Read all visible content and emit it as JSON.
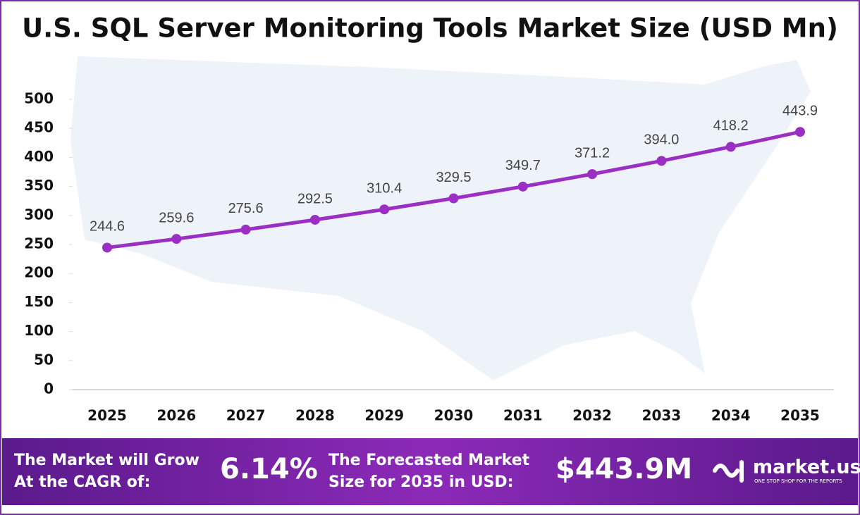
{
  "chart_data": {
    "type": "line",
    "title": "U.S. SQL Server Monitoring Tools Market Size (USD Mn)",
    "categories": [
      "2025",
      "2026",
      "2027",
      "2028",
      "2029",
      "2030",
      "2031",
      "2032",
      "2033",
      "2034",
      "2035"
    ],
    "values": [
      244.6,
      259.6,
      275.6,
      292.5,
      310.4,
      329.5,
      349.7,
      371.2,
      394.0,
      418.2,
      443.9
    ],
    "value_labels": [
      "244.6",
      "259.6",
      "275.6",
      "292.5",
      "310.4",
      "329.5",
      "349.7",
      "371.2",
      "394.0",
      "418.2",
      "443.9"
    ],
    "color": "#9b2fc4",
    "ylim": [
      0,
      500
    ],
    "yticks": [
      0,
      50,
      100,
      150,
      200,
      250,
      300,
      350,
      400,
      450,
      500
    ],
    "grid": false
  },
  "footer": {
    "cagr_label": [
      "The Market will Grow",
      "At the CAGR of:"
    ],
    "cagr": "6.14%",
    "forecast_label": [
      "The Forecasted Market",
      "Size for 2035 in USD:"
    ],
    "forecast": "$443.9M",
    "brand": "market.us",
    "tagline": "ONE STOP SHOP FOR THE REPORTS"
  }
}
